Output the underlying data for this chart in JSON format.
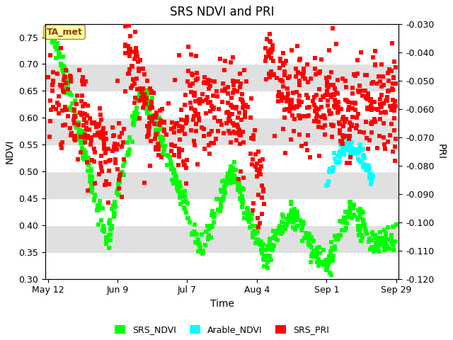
{
  "title": "SRS NDVI and PRI",
  "xlabel": "Time",
  "ylabel_left": "NDVI",
  "ylabel_right": "PRI",
  "ylim_left": [
    0.3,
    0.775
  ],
  "ylim_right": [
    -0.12,
    -0.03
  ],
  "yticks_left": [
    0.3,
    0.35,
    0.4,
    0.45,
    0.5,
    0.55,
    0.6,
    0.65,
    0.7,
    0.75
  ],
  "yticks_right": [
    -0.12,
    -0.11,
    -0.1,
    -0.09,
    -0.08,
    -0.07,
    -0.06,
    -0.05,
    -0.04,
    -0.03
  ],
  "xtick_labels": [
    "May 12",
    "Jun 9",
    "Jul 7",
    "Aug 4",
    "Sep 1",
    "Sep 29"
  ],
  "xtick_days": [
    132,
    160,
    188,
    216,
    244,
    272
  ],
  "day_start": 132,
  "day_end": 272,
  "annotation_text": "TA_met",
  "colors": {
    "SRS_NDVI": "#00FF00",
    "Arable_NDVI": "#00FFFF",
    "SRS_PRI": "#FF0000",
    "bg_gray": "#E0E0E0",
    "bg_white": "#FFFFFF"
  },
  "marker_size_ndvi": 18,
  "marker_size_pri": 18,
  "marker_size_arable": 20,
  "legend_labels": [
    "SRS_NDVI",
    "Arable_NDVI",
    "SRS_PRI"
  ],
  "ndvi_seed": 42,
  "pri_seed": 99,
  "arable_seed": 7
}
